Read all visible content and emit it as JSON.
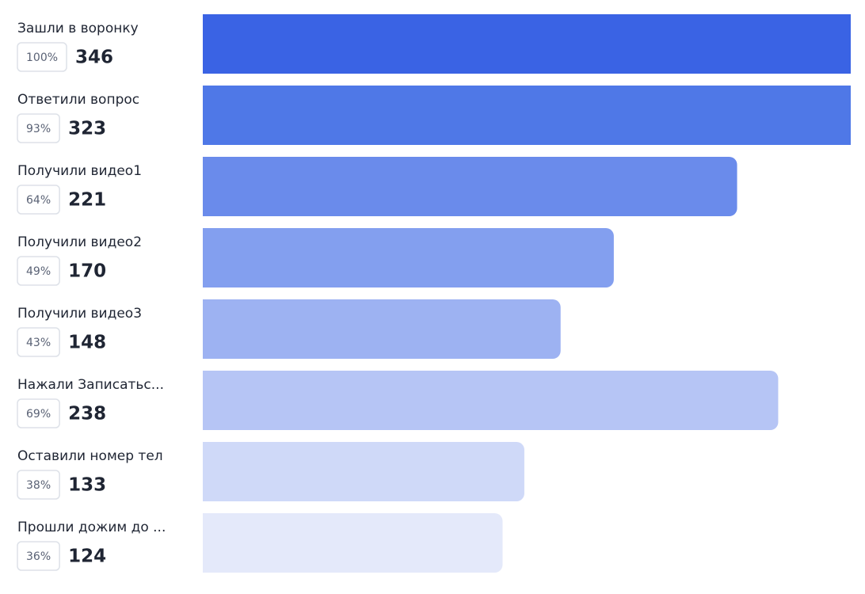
{
  "chart_data": {
    "type": "funnel",
    "categories": [
      "Зашли в воронку",
      "Ответили вопрос",
      "Получили видео1",
      "Получили видео2",
      "Получили видео3",
      "Нажали Записатьс...",
      "Оставили номер тел",
      "Прошли дожим до ..."
    ],
    "values": [
      346,
      323,
      221,
      170,
      148,
      238,
      133,
      124
    ],
    "shares": [
      "100%",
      "93%",
      "64%",
      "49%",
      "43%",
      "69%",
      "38%",
      "36%"
    ],
    "colors": [
      "#3a63e4",
      "#4f78e7",
      "#6a8beb",
      "#839fef",
      "#9db2f2",
      "#b6c5f5",
      "#cfd9f8",
      "#e4e9fa"
    ],
    "xlim": [
      0,
      268
    ]
  }
}
